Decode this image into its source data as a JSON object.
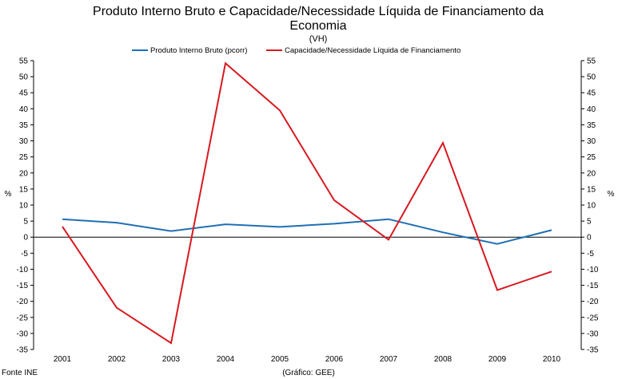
{
  "chart_data": {
    "type": "line",
    "title_line1": "Produto Interno Bruto e Capacidade/Necessidade Líquida de Financiamento da",
    "title_line2": "Economia",
    "subtitle": "(VH)",
    "categories": [
      "2001",
      "2002",
      "2003",
      "2004",
      "2005",
      "2006",
      "2007",
      "2008",
      "2009",
      "2010"
    ],
    "series": [
      {
        "name": "Produto Interno Bruto (pcorr)",
        "color": "#1F6FB4",
        "values": [
          5.6,
          4.5,
          1.9,
          4.0,
          3.2,
          4.2,
          5.6,
          1.5,
          -2.1,
          2.2
        ]
      },
      {
        "name": "Capacidade/Necessidade Líquida de Financiamento",
        "color": "#D71920",
        "values": [
          3.3,
          -22.0,
          -33.0,
          54.2,
          39.5,
          11.5,
          -0.8,
          29.4,
          -16.5,
          -10.7
        ]
      }
    ],
    "ylim": [
      -35,
      55
    ],
    "ytick_step": 5,
    "ylabel_left": "%",
    "ylabel_right": "%",
    "grid": false
  },
  "footer": {
    "source": "Fonte INE",
    "credit": "(Gráfico: GEE)"
  }
}
